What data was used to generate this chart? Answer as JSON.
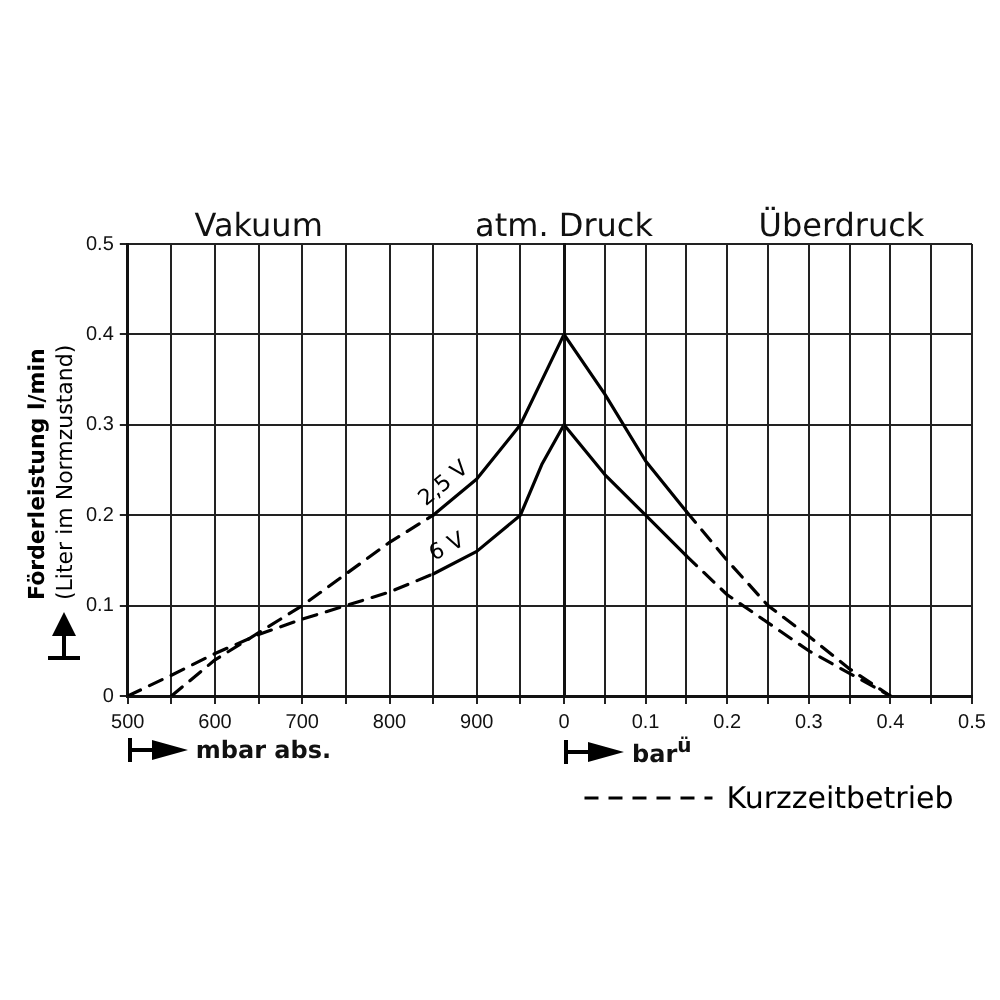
{
  "chart_data": [
    {
      "type": "line",
      "ylabel": "Förderleistung l/min\n(Liter im Normzustand)",
      "xlabel": "mbar abs.",
      "annotations": [
        "Vakuum",
        "atm. Druck"
      ],
      "xlim": [
        500,
        1000
      ],
      "xticks": [
        500,
        {
          "value": 550,
          "label": null
        },
        600,
        {
          "value": 650,
          "label": null
        },
        700,
        {
          "value": 750,
          "label": null
        },
        800,
        {
          "value": 850,
          "label": null
        },
        900,
        {
          "value": 950,
          "label": null
        },
        {
          "value": 1000,
          "label": null
        }
      ],
      "ylim": [
        0,
        0.5
      ],
      "yticks": [
        0,
        0.1,
        0.2,
        0.3,
        0.4,
        0.5
      ],
      "grid": true,
      "marker": "none",
      "series": [
        {
          "name": "2,5 V",
          "color": "#000000",
          "line_style": "solid",
          "x": [
            850,
            900,
            950,
            975,
            1000
          ],
          "values": [
            0.2,
            0.24,
            0.3,
            0.35,
            0.4
          ]
        },
        {
          "name": "6 V",
          "color": "#000000",
          "line_style": "solid",
          "x": [
            850,
            900,
            950,
            975,
            1000
          ],
          "values": [
            0.135,
            0.16,
            0.2,
            0.257,
            0.3
          ]
        },
        {
          "color": "#000000",
          "line_style": "dashed",
          "x": [
            550,
            600,
            650,
            700,
            750,
            800,
            850
          ],
          "values": [
            0,
            0.04,
            0.07,
            0.1,
            0.135,
            0.17,
            0.2
          ]
        },
        {
          "color": "#000000",
          "line_style": "dashed",
          "x": [
            500,
            550,
            600,
            650,
            700,
            750,
            800,
            850
          ],
          "values": [
            0,
            0.023,
            0.047,
            0.068,
            0.085,
            0.1,
            0.115,
            0.135
          ]
        }
      ]
    },
    {
      "type": "line",
      "xlabel": "bar$^{ü}$",
      "annotations": [
        "Überdruck"
      ],
      "xlim": [
        0,
        0.5
      ],
      "xticks": [
        0,
        {
          "value": 0.05,
          "label": null
        },
        0.1,
        {
          "value": 0.15,
          "label": null
        },
        0.2,
        {
          "value": 0.25,
          "label": null
        },
        0.3,
        {
          "value": 0.35,
          "label": null
        },
        0.4,
        {
          "value": 0.45,
          "label": null
        },
        0.5
      ],
      "ylim": [
        0,
        0.5
      ],
      "yticks": [
        0,
        0.1,
        0.2,
        0.3,
        0.4,
        0.5
      ],
      "tick_labels": "x",
      "grid": true,
      "legend": "bottom",
      "marker": "none",
      "series": [
        {
          "color": "#000000",
          "line_style": "solid",
          "x": [
            0,
            0.05,
            0.1,
            0.15
          ],
          "values": [
            0.4,
            0.334,
            0.26,
            0.204
          ]
        },
        {
          "color": "#000000",
          "line_style": "solid",
          "x": [
            0,
            0.05,
            0.1,
            0.15
          ],
          "values": [
            0.3,
            0.245,
            0.2,
            0.155
          ]
        },
        {
          "name": "Kurzzeitbetrieb",
          "color": "#000000",
          "line_style": "dashed",
          "x": [
            0.15,
            0.2,
            0.25,
            0.3,
            0.35,
            0.4
          ],
          "values": [
            0.204,
            0.15,
            0.1,
            0.066,
            0.03,
            0
          ]
        },
        {
          "color": "#000000",
          "line_style": "dashed",
          "x": [
            0.15,
            0.2,
            0.3,
            0.4
          ],
          "values": [
            0.155,
            0.112,
            0.05,
            0
          ]
        }
      ]
    }
  ]
}
